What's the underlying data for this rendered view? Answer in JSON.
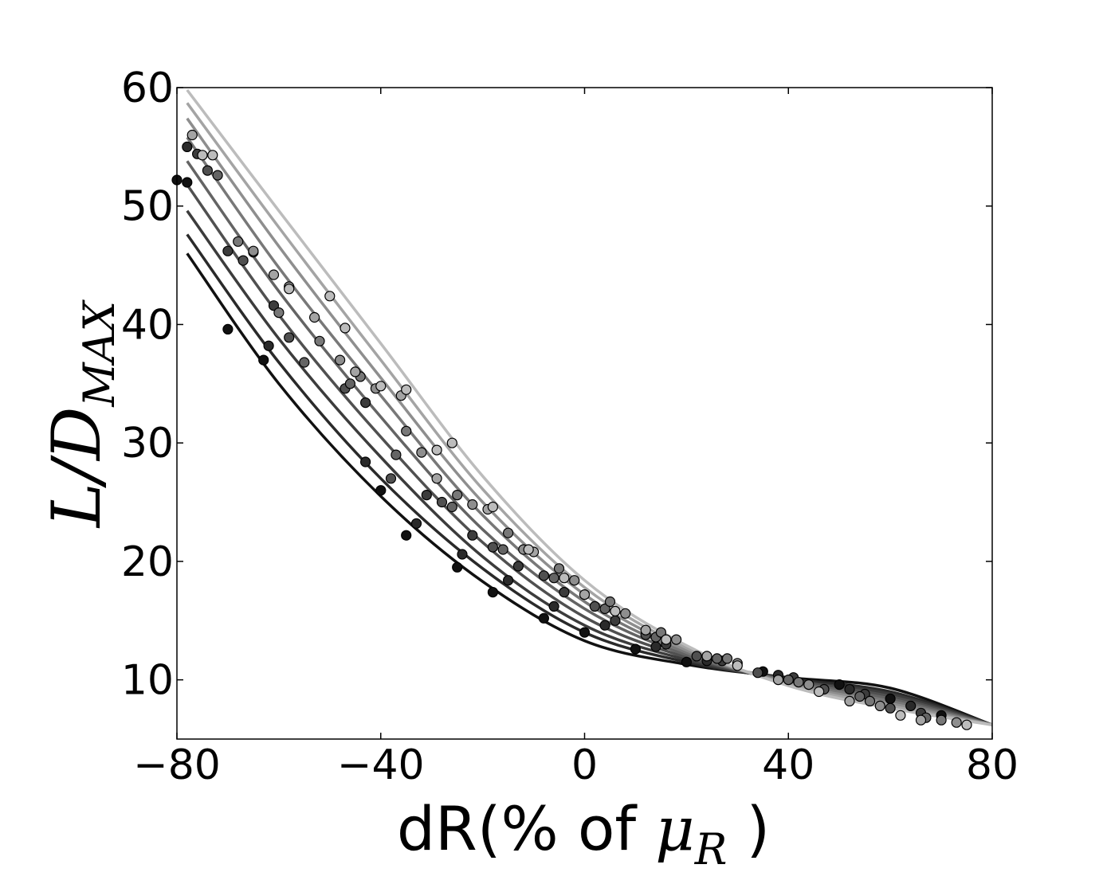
{
  "chart_data": {
    "type": "scatter",
    "title": "",
    "xlabel": "dR(% of μ_R )",
    "xlabel_parts": {
      "prefix": "dR(% of ",
      "mu": "μ",
      "sub": "R",
      "suffix": " )"
    },
    "ylabel": "L/D_MAX",
    "ylabel_parts": {
      "main": "L/D",
      "sub": "MAX"
    },
    "xlim": [
      -80,
      80
    ],
    "ylim": [
      5,
      60
    ],
    "xticks": [
      -80,
      -40,
      0,
      40,
      80
    ],
    "xtick_labels": [
      "−80",
      "−40",
      "0",
      "40",
      "80"
    ],
    "yticks": [
      10,
      20,
      30,
      40,
      50,
      60
    ],
    "ytick_labels": [
      "10",
      "20",
      "30",
      "40",
      "50",
      "60"
    ],
    "grid": false,
    "legend": "none",
    "series_colors": [
      "#111111",
      "#2a2a2a",
      "#3c3c3c",
      "#505050",
      "#646464",
      "#787878",
      "#8e8e8e",
      "#a4a4a4",
      "#bcbcbc"
    ],
    "series": [
      {
        "fit_curve": {
          "x": [
            -78,
            -60,
            -40,
            -20,
            0,
            20,
            40,
            60,
            80
          ],
          "y": [
            46.0,
            35.0,
            25.5,
            18.3,
            13.3,
            11.3,
            10.2,
            9.3,
            6.2
          ]
        },
        "points": {
          "x": [
            -80,
            -78,
            -70,
            -63,
            -40,
            -35,
            -25,
            -18,
            -8,
            0,
            10,
            20,
            35,
            50,
            60,
            70
          ],
          "y": [
            52.2,
            52.0,
            39.6,
            37.0,
            26.0,
            22.2,
            19.5,
            17.4,
            15.2,
            14.0,
            12.6,
            11.5,
            10.7,
            9.6,
            8.4,
            7.0
          ]
        }
      },
      {
        "fit_curve": {
          "x": [
            -78,
            -60,
            -40,
            -20,
            0,
            20,
            40,
            60,
            80
          ],
          "y": [
            47.6,
            36.8,
            27.0,
            19.4,
            14.0,
            11.5,
            10.1,
            9.0,
            6.2
          ]
        },
        "points": {
          "x": [
            -78,
            -62,
            -43,
            -33,
            -24,
            -15,
            -6,
            4,
            14,
            24,
            38,
            52,
            64
          ],
          "y": [
            55.0,
            38.2,
            28.4,
            23.2,
            20.6,
            18.4,
            16.2,
            14.6,
            12.8,
            11.6,
            10.4,
            9.2,
            7.8
          ]
        }
      },
      {
        "fit_curve": {
          "x": [
            -78,
            -60,
            -40,
            -20,
            0,
            20,
            40,
            60,
            80
          ],
          "y": [
            49.6,
            38.8,
            28.8,
            20.4,
            14.6,
            11.7,
            10.0,
            8.8,
            6.2
          ]
        },
        "points": {
          "x": [
            -76,
            -70,
            -61,
            -43,
            -31,
            -22,
            -13,
            -4,
            6,
            16,
            27,
            41,
            55,
            66
          ],
          "y": [
            54.4,
            46.2,
            41.6,
            33.4,
            25.6,
            22.2,
            19.6,
            17.4,
            15.0,
            13.0,
            11.6,
            10.2,
            8.8,
            7.2
          ]
        }
      },
      {
        "fit_curve": {
          "x": [
            -78,
            -60,
            -40,
            -20,
            0,
            20,
            40,
            60,
            80
          ],
          "y": [
            51.8,
            40.8,
            30.5,
            21.6,
            15.3,
            11.9,
            10.0,
            8.6,
            6.2
          ]
        },
        "points": {
          "x": [
            -74,
            -67,
            -58,
            -47,
            -38,
            -28,
            -18,
            -8,
            2,
            12,
            22,
            34,
            47,
            60
          ],
          "y": [
            53.0,
            45.4,
            38.9,
            34.6,
            27.0,
            25.0,
            21.2,
            18.8,
            16.2,
            13.8,
            12.0,
            10.6,
            9.2,
            7.6
          ]
        }
      },
      {
        "fit_curve": {
          "x": [
            -78,
            -60,
            -40,
            -20,
            0,
            20,
            40,
            60,
            80
          ],
          "y": [
            53.8,
            42.8,
            32.2,
            22.7,
            16.0,
            12.1,
            9.9,
            8.4,
            6.2
          ]
        },
        "points": {
          "x": [
            -72,
            -65,
            -55,
            -46,
            -37,
            -26,
            -16,
            -6,
            4,
            14,
            26,
            40,
            54,
            67
          ],
          "y": [
            52.6,
            46.1,
            36.8,
            35.0,
            29.0,
            24.6,
            21.0,
            18.6,
            16.0,
            13.6,
            11.8,
            10.0,
            8.6,
            6.8
          ]
        }
      },
      {
        "fit_curve": {
          "x": [
            -78,
            -60,
            -40,
            -20,
            0,
            20,
            40,
            60,
            80
          ],
          "y": [
            55.8,
            44.8,
            34.0,
            23.9,
            16.6,
            12.3,
            9.8,
            8.2,
            6.2
          ]
        },
        "points": {
          "x": [
            -68,
            -60,
            -52,
            -44,
            -35,
            -25,
            -15,
            -5,
            5,
            15,
            28,
            42,
            56,
            70
          ],
          "y": [
            47.0,
            41.0,
            38.6,
            35.6,
            31.0,
            25.6,
            22.4,
            19.4,
            16.6,
            14.0,
            11.8,
            9.8,
            8.2,
            6.6
          ]
        }
      },
      {
        "fit_curve": {
          "x": [
            -78,
            -60,
            -40,
            -20,
            0,
            20,
            40,
            60,
            80
          ],
          "y": [
            57.4,
            46.6,
            35.5,
            25.0,
            17.2,
            12.5,
            9.7,
            8.0,
            6.2
          ]
        },
        "points": {
          "x": [
            -65,
            -58,
            -48,
            -41,
            -32,
            -22,
            -12,
            -2,
            8,
            18,
            30,
            44,
            58,
            73
          ],
          "y": [
            46.2,
            43.2,
            37.0,
            34.6,
            29.2,
            24.8,
            21.0,
            18.4,
            15.6,
            13.4,
            11.4,
            9.6,
            7.8,
            6.4
          ]
        }
      },
      {
        "fit_curve": {
          "x": [
            -78,
            -60,
            -40,
            -20,
            0,
            20,
            40,
            60,
            80
          ],
          "y": [
            58.7,
            48.2,
            37.0,
            26.1,
            17.8,
            12.7,
            9.6,
            7.8,
            6.2
          ]
        },
        "points": {
          "x": [
            -77,
            -61,
            -53,
            -45,
            -36,
            -29,
            -19,
            -10,
            0,
            12,
            24,
            38,
            52,
            66
          ],
          "y": [
            56.0,
            44.2,
            40.6,
            36.0,
            34.0,
            27.0,
            24.4,
            20.8,
            17.2,
            14.2,
            12.0,
            10.0,
            8.2,
            6.6
          ]
        }
      },
      {
        "fit_curve": {
          "x": [
            -78,
            -60,
            -40,
            -20,
            0,
            20,
            40,
            60,
            80
          ],
          "y": [
            59.8,
            49.6,
            38.4,
            27.2,
            18.4,
            12.9,
            9.5,
            7.6,
            6.2
          ]
        },
        "points": {
          "x": [
            -75,
            -73,
            -58,
            -50,
            -47,
            -40,
            -35,
            -29,
            -26,
            -18,
            -11,
            -4,
            6,
            16,
            30,
            46,
            62,
            75
          ],
          "y": [
            54.3,
            54.3,
            43.0,
            42.4,
            39.7,
            34.8,
            34.5,
            29.4,
            30.0,
            24.6,
            21.0,
            18.6,
            15.8,
            13.4,
            11.2,
            9.0,
            7.0,
            6.2
          ]
        }
      }
    ]
  }
}
